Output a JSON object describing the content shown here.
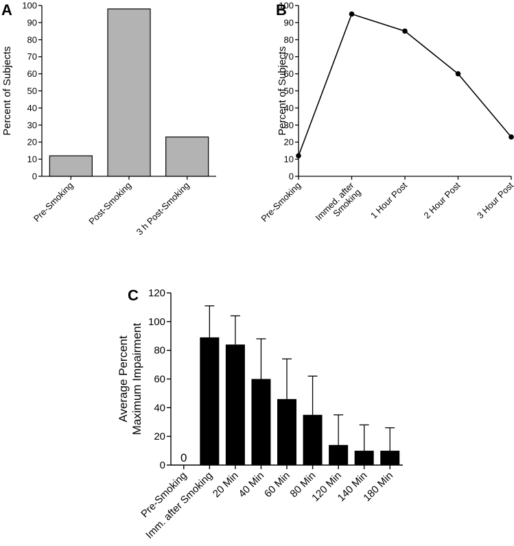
{
  "chart_data": [
    {
      "panel_label": "A",
      "type": "bar",
      "ylabel": "Percent of Subjects",
      "ylim": [
        0,
        100
      ],
      "yticks": [
        0,
        10,
        20,
        30,
        40,
        50,
        60,
        70,
        80,
        90,
        100
      ],
      "categories": [
        "Pre-Smoking",
        "Post-Smoking",
        "3 h Post-Smoking"
      ],
      "values": [
        12,
        98,
        23
      ],
      "bar_color": "#b3b3b3"
    },
    {
      "panel_label": "B",
      "type": "line",
      "ylabel": "Percent of Subjects",
      "ylim": [
        0,
        100
      ],
      "yticks": [
        0,
        10,
        20,
        30,
        40,
        50,
        60,
        70,
        80,
        90,
        100
      ],
      "categories": [
        [
          "Pre-Smoking"
        ],
        [
          "Immed. after",
          "Smoking"
        ],
        [
          "1 Hour Post"
        ],
        [
          "2 Hour Post"
        ],
        [
          "3 Hour Post"
        ]
      ],
      "values": [
        12,
        95,
        85,
        60,
        23
      ]
    },
    {
      "panel_label": "C",
      "type": "bar",
      "ylabel_lines": [
        "Average Percent",
        "Maximum Impairment"
      ],
      "ylim": [
        0,
        120
      ],
      "yticks": [
        0,
        20,
        40,
        60,
        80,
        100,
        120
      ],
      "categories": [
        "Pre-Smoking",
        "Imm. after Smoking",
        "20 Min",
        "40 Min",
        "60 Min",
        "80 Min",
        "120 Min",
        "140 Min",
        "180 Min"
      ],
      "values": [
        0,
        89,
        84,
        60,
        46,
        35,
        14,
        10,
        10
      ],
      "errors": [
        0,
        22,
        20,
        28,
        28,
        27,
        21,
        18,
        16
      ],
      "zero_label": "0",
      "bar_color": "#000000"
    }
  ]
}
